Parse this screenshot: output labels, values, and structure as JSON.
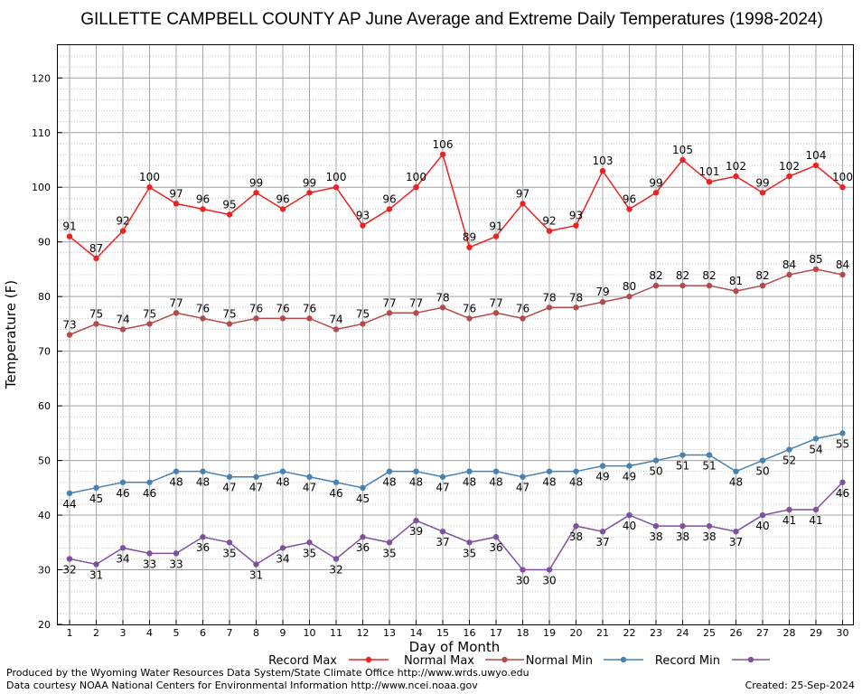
{
  "chart_data": {
    "type": "line",
    "title": "GILLETTE CAMPBELL COUNTY AP June Average and Extreme Daily Temperatures (1998-2024)",
    "xlabel": "Day of Month",
    "ylabel": "Temperature (F)",
    "ylim": [
      20,
      126
    ],
    "y_ticks": [
      20,
      30,
      40,
      50,
      60,
      70,
      80,
      90,
      100,
      110,
      120
    ],
    "x": [
      1,
      2,
      3,
      4,
      5,
      6,
      7,
      8,
      9,
      10,
      11,
      12,
      13,
      14,
      15,
      16,
      17,
      18,
      19,
      20,
      21,
      22,
      23,
      24,
      25,
      26,
      27,
      28,
      29,
      30
    ],
    "grid": true,
    "legend_position": "bottom",
    "series": [
      {
        "name": "Record Max",
        "color": "#ee2020",
        "label_position": "above",
        "values": [
          91,
          87,
          92,
          100,
          97,
          96,
          95,
          99,
          96,
          99,
          100,
          93,
          96,
          100,
          106,
          89,
          91,
          97,
          92,
          93,
          103,
          96,
          99,
          105,
          101,
          102,
          99,
          102,
          104,
          100
        ]
      },
      {
        "name": "Normal Max",
        "color": "#b54a4a",
        "label_position": "above",
        "values": [
          73,
          75,
          74,
          75,
          77,
          76,
          75,
          76,
          76,
          76,
          74,
          75,
          77,
          77,
          78,
          76,
          77,
          76,
          78,
          78,
          79,
          80,
          82,
          82,
          82,
          81,
          82,
          84,
          85,
          84
        ]
      },
      {
        "name": "Normal Min",
        "color": "#4682b4",
        "label_position": "below",
        "values": [
          44,
          45,
          46,
          46,
          48,
          48,
          47,
          47,
          48,
          47,
          46,
          45,
          48,
          48,
          47,
          48,
          48,
          47,
          48,
          48,
          49,
          49,
          50,
          51,
          51,
          48,
          50,
          52,
          54,
          55
        ]
      },
      {
        "name": "Record Min",
        "color": "#8050a0",
        "label_position": "below",
        "values": [
          32,
          31,
          34,
          33,
          33,
          36,
          35,
          31,
          34,
          35,
          32,
          36,
          35,
          39,
          37,
          35,
          36,
          30,
          30,
          38,
          37,
          40,
          38,
          38,
          38,
          37,
          40,
          41,
          41,
          46
        ]
      }
    ]
  },
  "footer": {
    "line1": "Produced by the Wyoming Water Resources Data System/State Climate Office http://www.wrds.uwyo.edu",
    "line2": "Data courtesy NOAA National Centers for Environmental Information http://www.ncei.noaa.gov",
    "created": "Created:  25-Sep-2024"
  }
}
